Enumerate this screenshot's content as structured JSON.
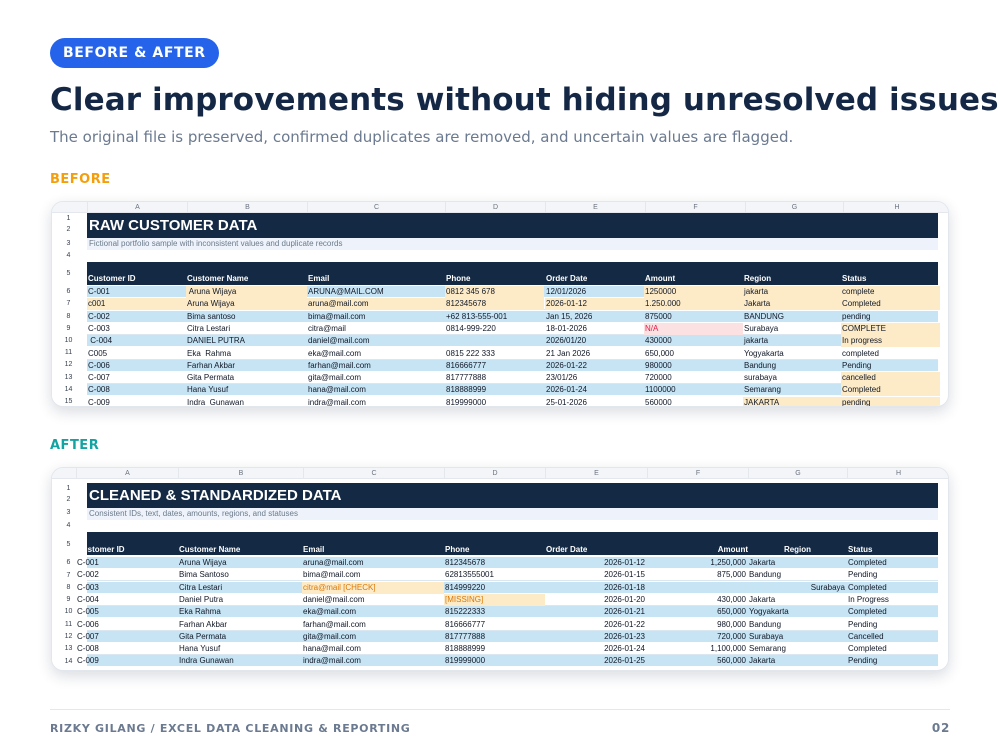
{
  "badge": "BEFORE & AFTER",
  "title": "Clear improvements without hiding unresolved issues",
  "subtitle": "The original file is preserved, confirmed duplicates are removed, and uncertain values are flagged.",
  "before": {
    "section_label": "BEFORE",
    "columns": [
      "A",
      "B",
      "C",
      "D",
      "E",
      "F",
      "G",
      "H"
    ],
    "row_numbers": [
      "1",
      "2",
      "3",
      "4",
      "5",
      "6",
      "7",
      "8",
      "9",
      "10",
      "11",
      "12",
      "13",
      "14",
      "15"
    ],
    "sheet_title": "RAW CUSTOMER DATA",
    "sheet_subtitle": "Fictional portfolio sample with inconsistent values and duplicate records",
    "headers": [
      "Customer ID",
      "Customer Name",
      "Email",
      "Phone",
      "Order Date",
      "Amount",
      "Region",
      "Status"
    ],
    "rows": [
      [
        "C-001",
        " Aruna Wijaya",
        "ARUNA@MAIL.COM",
        "0812 345 678",
        "12/01/2026",
        "1250000",
        "jakarta",
        "complete"
      ],
      [
        "c001",
        "Aruna Wijaya",
        "aruna@mail.com",
        "812345678",
        "2026-01-12",
        "1.250.000",
        "Jakarta",
        "Completed"
      ],
      [
        "C-002",
        "Bima santoso",
        "bima@mail.com",
        "+62 813-555-001",
        "Jan 15, 2026",
        "875000",
        "BANDUNG",
        "pending"
      ],
      [
        "C-003",
        "Citra Lestari",
        "citra@mail",
        "0814-999-220",
        "18-01-2026",
        "N/A",
        "Surabaya",
        "COMPLETE"
      ],
      [
        " C-004",
        "DANIEL PUTRA",
        "daniel@mail.com",
        "",
        "2026/01/20",
        "430000",
        "jakarta",
        "In progress"
      ],
      [
        "C005",
        "Eka  Rahma",
        "eka@mail.com",
        "0815 222 333",
        "21 Jan 2026",
        "650,000",
        "Yogyakarta",
        "completed"
      ],
      [
        "C-006",
        "Farhan Akbar",
        "farhan@mail.com",
        "816666777",
        "2026-01-22",
        "980000",
        "Bandung",
        "Pending"
      ],
      [
        "C-007",
        "Gita Permata",
        "gita@mail.com",
        "817777888",
        "23/01/26",
        "720000",
        "surabaya",
        "cancelled"
      ],
      [
        "C-008",
        "Hana Yusuf",
        "hana@mail.com",
        "818888999",
        "2026-01-24",
        "1100000",
        "Semarang",
        "Completed"
      ],
      [
        "C-009",
        "Indra  Gunawan",
        "indra@mail.com",
        "819999000",
        "25-01-2026",
        "560000",
        "JAKARTA",
        "pending"
      ]
    ]
  },
  "after": {
    "section_label": "AFTER",
    "columns": [
      "A",
      "B",
      "C",
      "D",
      "E",
      "F",
      "G",
      "H"
    ],
    "row_numbers": [
      "1",
      "2",
      "3",
      "4",
      "5",
      "6",
      "7",
      "8",
      "9",
      "10",
      "11",
      "12",
      "13",
      "14"
    ],
    "sheet_title": "CLEANED & STANDARDIZED DATA",
    "sheet_subtitle": "Consistent IDs, text, dates, amounts, regions, and statuses",
    "headers": [
      "Customer ID",
      "Customer Name",
      "Email",
      "Phone",
      "Order Date",
      "Amount",
      "Region",
      "Status"
    ],
    "rows": [
      [
        "C-001",
        "Aruna Wijaya",
        "aruna@mail.com",
        "812345678",
        "2026-01-12",
        "1,250,000",
        "Jakarta",
        "Completed"
      ],
      [
        "C-002",
        "Bima Santoso",
        "bima@mail.com",
        "62813555001",
        "2026-01-15",
        "875,000",
        "Bandung",
        "Pending"
      ],
      [
        "C-003",
        "Citra Lestari",
        "citra@mail [CHECK]",
        "814999220",
        "2026-01-18",
        "",
        "Surabaya",
        "Completed"
      ],
      [
        "C-004",
        "Daniel Putra",
        "daniel@mail.com",
        "[MISSING]",
        "2026-01-20",
        "430,000",
        "Jakarta",
        "In Progress"
      ],
      [
        "C-005",
        "Eka Rahma",
        "eka@mail.com",
        "815222333",
        "2026-01-21",
        "650,000",
        "Yogyakarta",
        "Completed"
      ],
      [
        "C-006",
        "Farhan Akbar",
        "farhan@mail.com",
        "816666777",
        "2026-01-22",
        "980,000",
        "Bandung",
        "Pending"
      ],
      [
        "C-007",
        "Gita Permata",
        "gita@mail.com",
        "817777888",
        "2026-01-23",
        "720,000",
        "Surabaya",
        "Cancelled"
      ],
      [
        "C-008",
        "Hana Yusuf",
        "hana@mail.com",
        "818888999",
        "2026-01-24",
        "1,100,000",
        "Semarang",
        "Completed"
      ],
      [
        "C-009",
        "Indra Gunawan",
        "indra@mail.com",
        "819999000",
        "2026-01-25",
        "560,000",
        "Jakarta",
        "Pending"
      ]
    ]
  },
  "footer": {
    "author_line": "RIZKY GILANG  /  EXCEL DATA CLEANING & REPORTING",
    "page_number": "02"
  },
  "colors": {
    "badge": "#2563eb",
    "before_label": "#f59e0b",
    "after_label": "#14a3a3",
    "sheet_header": "#142a44",
    "row_band": "#c6e4f4",
    "flag_fill": "#fdebc8",
    "error_text": "#e11d48"
  }
}
